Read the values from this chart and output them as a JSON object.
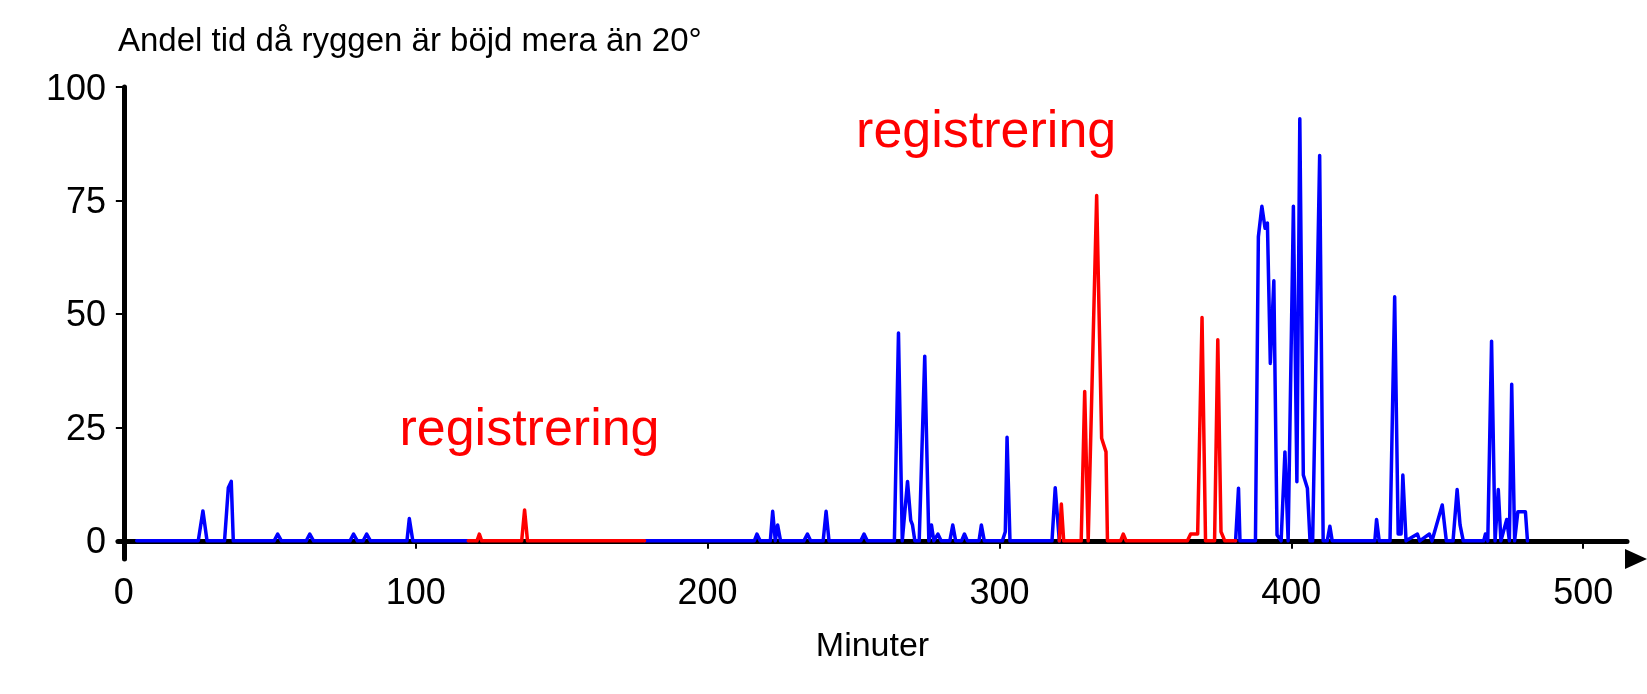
{
  "chart_data": {
    "type": "line",
    "title": "Andel tid då ryggen är böjd mera än 20°",
    "xlabel": "Minuter",
    "xlim": [
      -2,
      515
    ],
    "ylim": [
      -4,
      100
    ],
    "xticks": [
      0,
      100,
      200,
      300,
      400,
      500
    ],
    "yticks": [
      0,
      25,
      50,
      75,
      100
    ],
    "grid": false,
    "marker": "none",
    "line_style": "solid",
    "annotations": [
      "registrering",
      "registrering"
    ],
    "series": [
      {
        "color": "#0000ff",
        "x": [
          4.4,
          25.5,
          27.1,
          28.5,
          34.5,
          35.8,
          36.8,
          37.5,
          51.5,
          52.7,
          54,
          62.5,
          63.7,
          65,
          77.5,
          78.7,
          80,
          82,
          83.2,
          84.5,
          97,
          97.8,
          99,
          118,
          148,
          178.4,
          216,
          216.9,
          218,
          221.5,
          222.3,
          223.2,
          224,
          225,
          233,
          234.2,
          235.3,
          239.6,
          240.6,
          241.6,
          252.5,
          253.6,
          254.7,
          264,
          265.4,
          266.7,
          268.5,
          269.6,
          270.2,
          271,
          272.5,
          274.4,
          275.8,
          276.7,
          277.5,
          278.9,
          280,
          283,
          284,
          285,
          287,
          288,
          289,
          293,
          293.8,
          294.8,
          301,
          302,
          302.6,
          303.6,
          318,
          319.1,
          320.5,
          350,
          380.9,
          381.9,
          382.4,
          387.7,
          388.7,
          389.9,
          391,
          391.8,
          392.8,
          394,
          395.1,
          396.5,
          397.8,
          398.9,
          400.7,
          401.9,
          402.9,
          404.1,
          405.5,
          406.4,
          407.3,
          409.7,
          410.9,
          412.3,
          413.2,
          414,
          428.6,
          429.2,
          430.1,
          433.8,
          435.4,
          436.6,
          437.6,
          438.2,
          439.3,
          443.2,
          444,
          447.3,
          448.2,
          451.7,
          453.1,
          455.4,
          456.8,
          457.8,
          458.9,
          465.9,
          466.5,
          467.3,
          468.6,
          469.8,
          470.9,
          471.8,
          473.8,
          474.7,
          475.5,
          476.5,
          477.6,
          480.2,
          480.9
        ],
        "values": [
          0,
          0,
          6.6,
          0,
          0,
          11.7,
          13.1,
          0,
          0,
          1.5,
          0,
          0,
          1.5,
          0,
          0,
          1.5,
          0,
          0,
          1.5,
          0,
          0,
          4.9,
          0,
          0,
          null,
          0,
          0,
          1.5,
          0,
          0,
          6.5,
          0,
          3.5,
          0,
          0,
          1.5,
          0,
          0,
          6.5,
          0,
          0,
          1.5,
          0,
          0,
          45.8,
          0,
          13.1,
          4.5,
          3.5,
          0,
          0,
          40.7,
          0,
          3.5,
          0,
          1.5,
          0,
          0,
          3.5,
          0,
          0,
          1.5,
          0,
          0,
          3.5,
          0,
          0,
          2,
          22.8,
          0,
          0,
          11.7,
          0,
          null,
          0,
          11.6,
          0,
          0,
          67,
          73.7,
          68.9,
          70,
          39.1,
          57.3,
          1.3,
          0,
          19.6,
          0,
          73.7,
          13,
          93,
          14.5,
          11.6,
          0,
          0,
          84.9,
          0,
          0,
          3.2,
          0,
          0,
          4.7,
          0,
          0,
          53.8,
          1.5,
          1.5,
          14.5,
          0,
          1.5,
          0,
          1.5,
          0,
          7.9,
          0,
          0,
          11.3,
          3.5,
          0,
          0,
          1.5,
          0,
          44,
          0,
          11.3,
          0,
          4.7,
          0,
          34.5,
          0,
          6.4,
          6.4,
          0
        ]
      },
      {
        "color": "#ff0000",
        "x": [
          118,
          121,
          121.8,
          122.6,
          136.3,
          137.3,
          138.3,
          178.4,
          250,
          320.5,
          321.2,
          322,
          328,
          329.2,
          330.4,
          333.3,
          335,
          336.5,
          337,
          341.5,
          342.4,
          343.4,
          364.4,
          365.5,
          367.9,
          369.4,
          370.6,
          373.7,
          374.8,
          375.9,
          377.2,
          380.9
        ],
        "values": [
          0,
          0,
          1.5,
          0,
          0,
          6.8,
          0,
          0,
          null,
          0,
          8.1,
          0,
          0,
          32.9,
          0,
          76.1,
          22.6,
          19.6,
          0,
          0,
          1.5,
          0,
          0,
          1.5,
          1.5,
          49.2,
          0,
          0,
          44.3,
          2,
          0,
          0
        ]
      }
    ]
  }
}
